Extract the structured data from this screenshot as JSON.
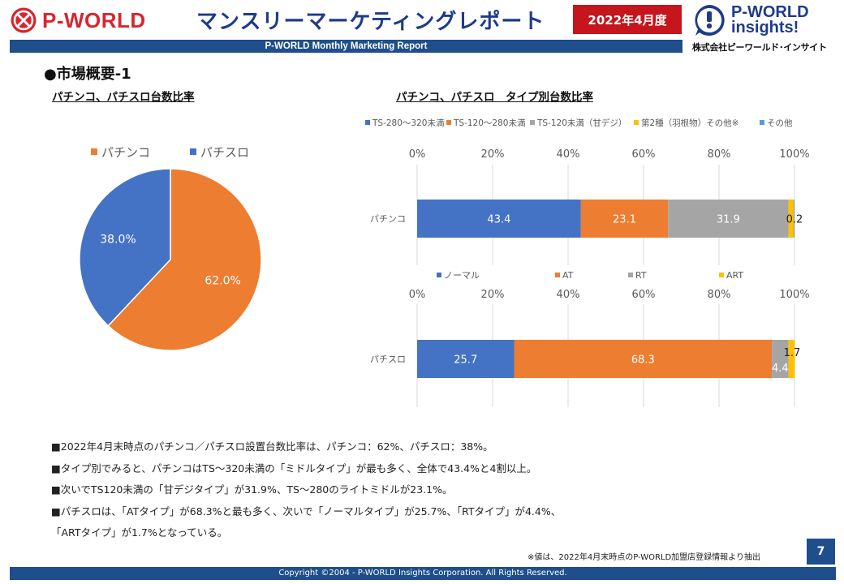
{
  "header": {
    "brand_left": "P-WORLD",
    "title": "マンスリーマーケティングレポート",
    "date_badge": "2022年4月度",
    "brand_right_line1": "P-WORLD",
    "brand_right_line2": "insights!",
    "company": "株式会社ピーワールド･インサイト",
    "subtitle": "P-WORLD Monthly Marketing Report"
  },
  "section_title": "●市場概要-1",
  "colors": {
    "blue": "#4472c4",
    "orange": "#ed7d31",
    "gray": "#a5a5a5",
    "yellow": "#ffc000",
    "lightblue": "#5b9bd5",
    "navy": "#1e4e8c",
    "red": "#c4161c"
  },
  "chart_data": [
    {
      "type": "pie",
      "title": "パチンコ、パチスロ台数比率",
      "legend_position": "top",
      "categories": [
        "パチンコ",
        "パチスロ"
      ],
      "values": [
        62.0,
        38.0
      ],
      "data_labels": [
        "62.0%",
        "38.0%"
      ]
    },
    {
      "type": "bar",
      "orientation": "horizontal",
      "stacked": true,
      "title": "パチンコ、パチスロ　タイプ別台数比率",
      "legend_position": "top",
      "categories": [
        "パチンコ"
      ],
      "xlim": [
        0,
        100
      ],
      "x_ticks": [
        "0%",
        "20%",
        "40%",
        "60%",
        "80%",
        "100%"
      ],
      "grid": true,
      "series": [
        {
          "name": "TS-280～320未満",
          "values": [
            43.4
          ],
          "label": "43.4"
        },
        {
          "name": "TS-120～280未満",
          "values": [
            23.1
          ],
          "label": "23.1"
        },
        {
          "name": "TS-120未満（甘デジ）",
          "values": [
            31.9
          ],
          "label": "31.9"
        },
        {
          "name": "第2種（羽根物）その他※",
          "values": [
            1.4
          ],
          "label": ""
        },
        {
          "name": "その他",
          "values": [
            0.2
          ],
          "label": "0.2"
        }
      ]
    },
    {
      "type": "bar",
      "orientation": "horizontal",
      "stacked": true,
      "legend_position": "top",
      "categories": [
        "パチスロ"
      ],
      "xlim": [
        0,
        100
      ],
      "x_ticks": [
        "0%",
        "20%",
        "40%",
        "60%",
        "80%",
        "100%"
      ],
      "grid": true,
      "series": [
        {
          "name": "ノーマル",
          "values": [
            25.7
          ],
          "label": "25.7"
        },
        {
          "name": "AT",
          "values": [
            68.3
          ],
          "label": "68.3"
        },
        {
          "name": "RT",
          "values": [
            4.4
          ],
          "label": "4.4"
        },
        {
          "name": "ART",
          "values": [
            1.7
          ],
          "label": "1.7"
        }
      ]
    }
  ],
  "notes": [
    "■2022年4月末時点のパチンコ／パチスロ設置台数比率は、パチンコ：62%、パチスロ：38%。",
    "■タイプ別でみると、パチンコはTS～320未満の「ミドルタイプ」が最も多く、全体で43.4%と4割以上。",
    "■次いでTS120未満の「甘デジタイプ」が31.9%、TS～280のライトミドルが23.1%。",
    "■パチスロは、「ATタイプ」が68.3%と最も多く、次いで「ノーマルタイプ」が25.7%、「RTタイプ」が4.4%、",
    "「ARTタイプ」が1.7%となっている。"
  ],
  "footnote": "※値は、2022年4月末時点のP-WORLD加盟店登録情報より抽出",
  "page_number": "7",
  "copyright": "Copyright ©2004 -  P-WORLD Insights Corporation. All Rights Reserved."
}
